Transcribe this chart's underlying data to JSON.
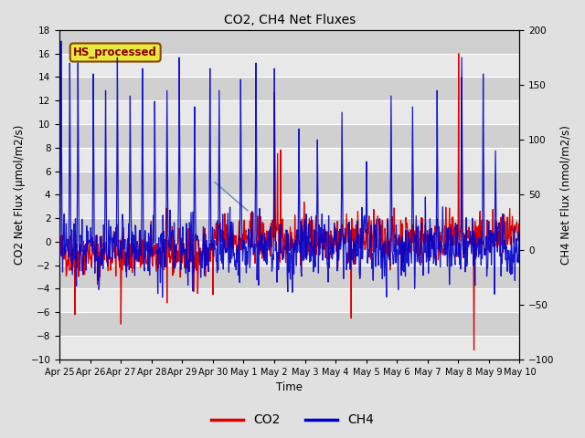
{
  "title": "CO2, CH4 Net Fluxes",
  "xlabel": "Time",
  "ylabel_left": "CO2 Net Flux (μmol/m2/s)",
  "ylabel_right": "CH4 Net Flux (nmol/m2/s)",
  "ylim_left": [
    -10,
    18
  ],
  "ylim_right": [
    -100,
    200
  ],
  "yticks_left": [
    -10,
    -8,
    -6,
    -4,
    -2,
    0,
    2,
    4,
    6,
    8,
    10,
    12,
    14,
    16,
    18
  ],
  "yticks_right": [
    -100,
    -50,
    0,
    50,
    100,
    150,
    200
  ],
  "xtick_labels": [
    "Apr 25",
    "Apr 26",
    "Apr 27",
    "Apr 28",
    "Apr 29",
    "Apr 30",
    "May 1",
    "May 2",
    "May 3",
    "May 4",
    "May 5",
    "May 6",
    "May 7",
    "May 8",
    "May 9",
    "May 10"
  ],
  "legend_labels": [
    "CO2",
    "CH4"
  ],
  "legend_colors": [
    "#dd0000",
    "#0000cc"
  ],
  "co2_color": "#dd0000",
  "ch4_color": "#0000cc",
  "fig_bg": "#e0e0e0",
  "plot_bg": "#d8d8d8",
  "band_light": "#e8e8e8",
  "band_dark": "#d0d0d0",
  "annotation_text": "HS_processed",
  "annotation_color": "#880000",
  "annotation_bg": "#e8e840",
  "annotation_edge": "#884400",
  "seed": 42,
  "n_points": 900,
  "days": 15
}
